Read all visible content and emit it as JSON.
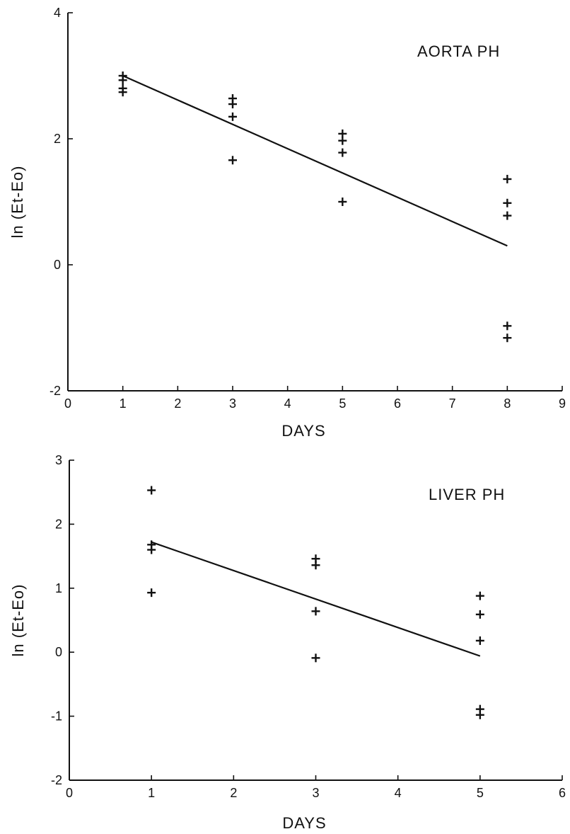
{
  "chart_data": [
    {
      "type": "scatter",
      "title": "AORTA PH",
      "xlabel": "DAYS",
      "ylabel": "ln (Et-Eo)",
      "xlim": [
        0,
        9
      ],
      "ylim": [
        -2,
        4
      ],
      "x_ticks": [
        "0",
        "1",
        "2",
        "3",
        "4",
        "5",
        "6",
        "7",
        "8",
        "9"
      ],
      "y_ticks": [
        "-2",
        "0",
        "2",
        "4"
      ],
      "grid": false,
      "points": [
        {
          "x": 1,
          "y": 3.0
        },
        {
          "x": 1,
          "y": 2.93
        },
        {
          "x": 1,
          "y": 2.8
        },
        {
          "x": 1,
          "y": 2.74
        },
        {
          "x": 3,
          "y": 2.64
        },
        {
          "x": 3,
          "y": 2.55
        },
        {
          "x": 3,
          "y": 2.35
        },
        {
          "x": 3,
          "y": 1.66
        },
        {
          "x": 5,
          "y": 2.08
        },
        {
          "x": 5,
          "y": 1.97
        },
        {
          "x": 5,
          "y": 1.78
        },
        {
          "x": 5,
          "y": 1.0
        },
        {
          "x": 8,
          "y": 1.36
        },
        {
          "x": 8,
          "y": 0.98
        },
        {
          "x": 8,
          "y": 0.78
        },
        {
          "x": 8,
          "y": -0.97
        },
        {
          "x": 8,
          "y": -1.16
        }
      ],
      "fit_line": {
        "x": [
          1,
          8
        ],
        "y": [
          3.0,
          0.3
        ]
      }
    },
    {
      "type": "scatter",
      "title": "LIVER PH",
      "xlabel": "DAYS",
      "ylabel": "ln (Et-Eo)",
      "xlim": [
        0,
        6
      ],
      "ylim": [
        -2,
        3
      ],
      "x_ticks": [
        "0",
        "1",
        "2",
        "3",
        "4",
        "5",
        "6"
      ],
      "y_ticks": [
        "-2",
        "-1",
        "0",
        "1",
        "2",
        "3"
      ],
      "grid": false,
      "points": [
        {
          "x": 1,
          "y": 2.53
        },
        {
          "x": 1,
          "y": 1.68
        },
        {
          "x": 1,
          "y": 1.6
        },
        {
          "x": 1,
          "y": 0.93
        },
        {
          "x": 3,
          "y": 1.46
        },
        {
          "x": 3,
          "y": 1.36
        },
        {
          "x": 3,
          "y": 0.64
        },
        {
          "x": 3,
          "y": -0.09
        },
        {
          "x": 5,
          "y": 0.88
        },
        {
          "x": 5,
          "y": 0.59
        },
        {
          "x": 5,
          "y": 0.18
        },
        {
          "x": 5,
          "y": -0.89
        },
        {
          "x": 5,
          "y": -0.98
        }
      ],
      "fit_line": {
        "x": [
          1,
          5
        ],
        "y": [
          1.72,
          -0.06
        ]
      }
    }
  ]
}
